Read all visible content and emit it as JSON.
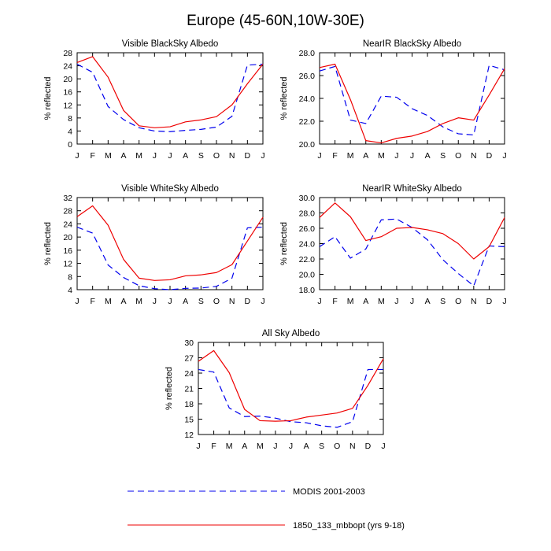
{
  "title": "Europe (45-60N,10W-30E)",
  "colors": {
    "series_0": "#0000ee",
    "series_1": "#ee0000"
  },
  "legend": {
    "entries": [
      {
        "label": "MODIS 2001-2003",
        "style": "dashed",
        "color": "#0000ee"
      },
      {
        "label": "1850_133_mbbopt (yrs 9-18)",
        "style": "solid",
        "color": "#ee0000"
      }
    ]
  },
  "chart_data": [
    {
      "type": "line",
      "title": "Visible BlackSky Albedo",
      "xlabel": "",
      "ylabel": "% reflected",
      "categories": [
        "J",
        "F",
        "M",
        "A",
        "M",
        "J",
        "J",
        "A",
        "S",
        "O",
        "N",
        "D",
        "J"
      ],
      "ylim": [
        0,
        28
      ],
      "yticks": [
        "0",
        "4",
        "8",
        "12",
        "16",
        "20",
        "24",
        "28"
      ],
      "ytick_values": [
        0,
        4,
        8,
        12,
        16,
        20,
        24,
        28
      ],
      "series": [
        {
          "name": "MODIS 2001-2003",
          "values": [
            24.5,
            22.0,
            11.5,
            7.5,
            5.0,
            4.0,
            3.8,
            4.2,
            4.5,
            5.2,
            8.5,
            24.2,
            24.5
          ]
        },
        {
          "name": "1850_133_mbbopt (yrs 9-18)",
          "values": [
            25.0,
            26.8,
            20.5,
            10.3,
            5.6,
            5.0,
            5.3,
            6.8,
            7.4,
            8.4,
            12.0,
            18.5,
            24.5
          ]
        }
      ]
    },
    {
      "type": "line",
      "title": "NearIR BlackSky Albedo",
      "xlabel": "",
      "ylabel": "% reflected",
      "categories": [
        "J",
        "F",
        "M",
        "A",
        "M",
        "J",
        "J",
        "A",
        "S",
        "O",
        "N",
        "D",
        "J"
      ],
      "ylim": [
        20,
        28
      ],
      "yticks": [
        "20.0",
        "22.0",
        "24.0",
        "26.0",
        "28.0"
      ],
      "ytick_values": [
        20,
        22,
        24,
        26,
        28
      ],
      "series": [
        {
          "name": "MODIS 2001-2003",
          "values": [
            26.4,
            26.8,
            22.1,
            21.8,
            24.2,
            24.1,
            23.1,
            22.5,
            21.5,
            20.9,
            20.8,
            26.9,
            26.5
          ]
        },
        {
          "name": "1850_133_mbbopt (yrs 9-18)",
          "values": [
            26.7,
            27.0,
            23.9,
            20.3,
            20.1,
            20.5,
            20.7,
            21.1,
            21.8,
            22.3,
            22.1,
            24.3,
            26.6
          ]
        }
      ]
    },
    {
      "type": "line",
      "title": "Visible WhiteSky Albedo",
      "xlabel": "",
      "ylabel": "% reflected",
      "categories": [
        "J",
        "F",
        "M",
        "A",
        "M",
        "J",
        "J",
        "A",
        "S",
        "O",
        "N",
        "D",
        "J"
      ],
      "ylim": [
        4,
        32
      ],
      "yticks": [
        "4",
        "8",
        "12",
        "16",
        "20",
        "24",
        "28",
        "32"
      ],
      "ytick_values": [
        4,
        8,
        12,
        16,
        20,
        24,
        28,
        32
      ],
      "series": [
        {
          "name": "MODIS 2001-2003",
          "values": [
            23.0,
            21.2,
            11.5,
            7.7,
            5.2,
            4.3,
            4.0,
            4.4,
            4.5,
            5.0,
            7.5,
            22.8,
            23.0
          ]
        },
        {
          "name": "1850_133_mbbopt (yrs 9-18)",
          "values": [
            26.2,
            29.5,
            23.6,
            13.2,
            7.5,
            6.8,
            7.0,
            8.2,
            8.5,
            9.2,
            11.6,
            18.8,
            26.0
          ]
        }
      ]
    },
    {
      "type": "line",
      "title": "NearIR WhiteSky Albedo",
      "xlabel": "",
      "ylabel": "% reflected",
      "categories": [
        "J",
        "F",
        "M",
        "A",
        "M",
        "J",
        "J",
        "A",
        "S",
        "O",
        "N",
        "D",
        "J"
      ],
      "ylim": [
        18,
        30
      ],
      "yticks": [
        "18.0",
        "20.0",
        "22.0",
        "24.0",
        "26.0",
        "28.0",
        "30.0"
      ],
      "ytick_values": [
        18,
        20,
        22,
        24,
        26,
        28,
        30
      ],
      "series": [
        {
          "name": "MODIS 2001-2003",
          "values": [
            23.6,
            24.9,
            22.1,
            23.3,
            27.1,
            27.2,
            26.1,
            24.5,
            21.9,
            20.1,
            18.5,
            23.7,
            23.6
          ]
        },
        {
          "name": "1850_133_mbbopt (yrs 9-18)",
          "values": [
            27.4,
            29.3,
            27.5,
            24.4,
            24.9,
            26.0,
            26.1,
            25.8,
            25.3,
            24.0,
            22.0,
            23.6,
            27.4
          ]
        }
      ]
    },
    {
      "type": "line",
      "title": "All Sky Albedo",
      "xlabel": "",
      "ylabel": "% reflected",
      "categories": [
        "J",
        "F",
        "M",
        "A",
        "M",
        "J",
        "J",
        "A",
        "S",
        "O",
        "N",
        "D",
        "J"
      ],
      "ylim": [
        12,
        30
      ],
      "yticks": [
        "12",
        "15",
        "18",
        "21",
        "24",
        "27",
        "30"
      ],
      "ytick_values": [
        12,
        15,
        18,
        21,
        24,
        27,
        30
      ],
      "series": [
        {
          "name": "MODIS 2001-2003",
          "values": [
            24.7,
            24.2,
            17.2,
            15.5,
            15.6,
            15.2,
            14.5,
            14.3,
            13.7,
            13.4,
            14.5,
            24.7,
            24.7
          ]
        },
        {
          "name": "1850_133_mbbopt (yrs 9-18)",
          "values": [
            26.3,
            28.4,
            24.1,
            16.9,
            14.7,
            14.6,
            14.7,
            15.4,
            15.8,
            16.2,
            17.1,
            21.6,
            26.8
          ]
        }
      ]
    }
  ]
}
